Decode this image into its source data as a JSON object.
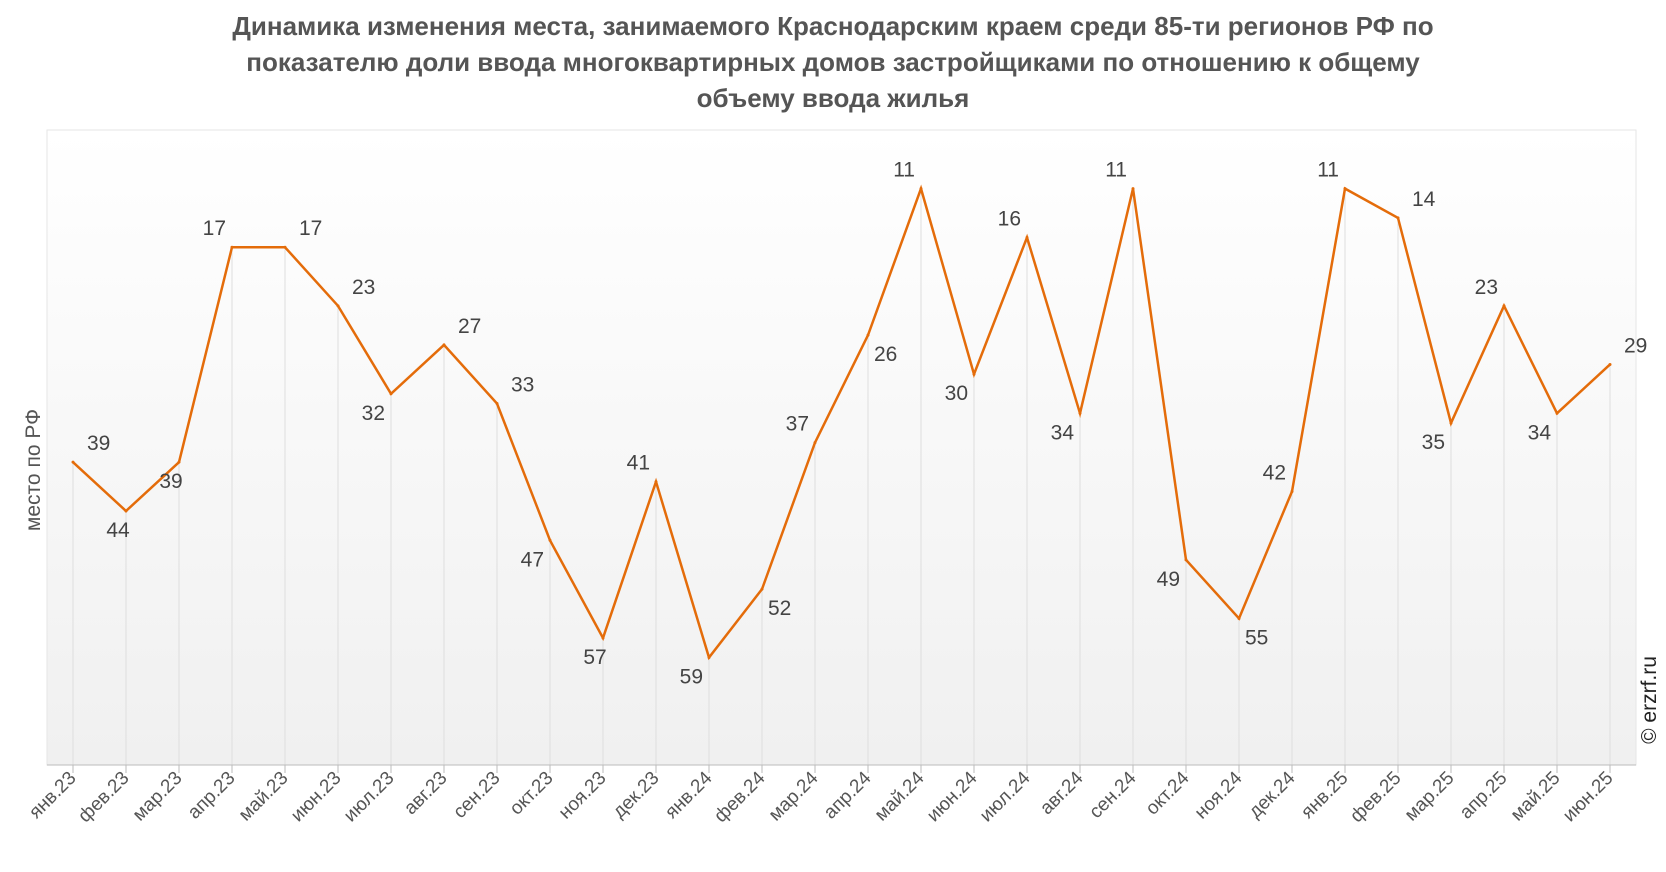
{
  "chart_data": {
    "type": "line",
    "title": "Динамика изменения места, занимаемого Краснодарским краем среди 85-ти регионов РФ по показателю доли ввода многоквартирных домов застройщиками по отношению к общему объему ввода жилья",
    "title_lines": [
      "Динамика изменения места, занимаемого Краснодарским краем среди 85-ти регионов РФ по",
      "показателю доли ввода многоквартирных домов застройщиками по отношению к общему",
      "объему ввода жилья"
    ],
    "xlabel": "",
    "ylabel": "место по РФ",
    "y_reversed": true,
    "ylim": [
      5,
      70
    ],
    "grid": "vertical",
    "categories": [
      "янв.23",
      "фев.23",
      "мар.23",
      "апр.23",
      "май.23",
      "июн.23",
      "июл.23",
      "авг.23",
      "сен.23",
      "окт.23",
      "ноя.23",
      "дек.23",
      "янв.24",
      "фев.24",
      "мар.24",
      "апр.24",
      "май.24",
      "июн.24",
      "июл.24",
      "авг.24",
      "сен.24",
      "окт.24",
      "ноя.24",
      "дек.24",
      "янв.25",
      "фев.25",
      "мар.25",
      "апр.25",
      "май.25",
      "июн.25"
    ],
    "series": [
      {
        "name": "место по РФ",
        "color": "#e46c0a",
        "values": [
          39,
          44,
          39,
          17,
          17,
          23,
          32,
          27,
          33,
          47,
          57,
          41,
          59,
          52,
          37,
          26,
          11,
          30,
          16,
          34,
          11,
          49,
          55,
          42,
          11,
          14,
          35,
          23,
          34,
          29
        ]
      }
    ]
  },
  "copyright": "© erzrf.ru"
}
